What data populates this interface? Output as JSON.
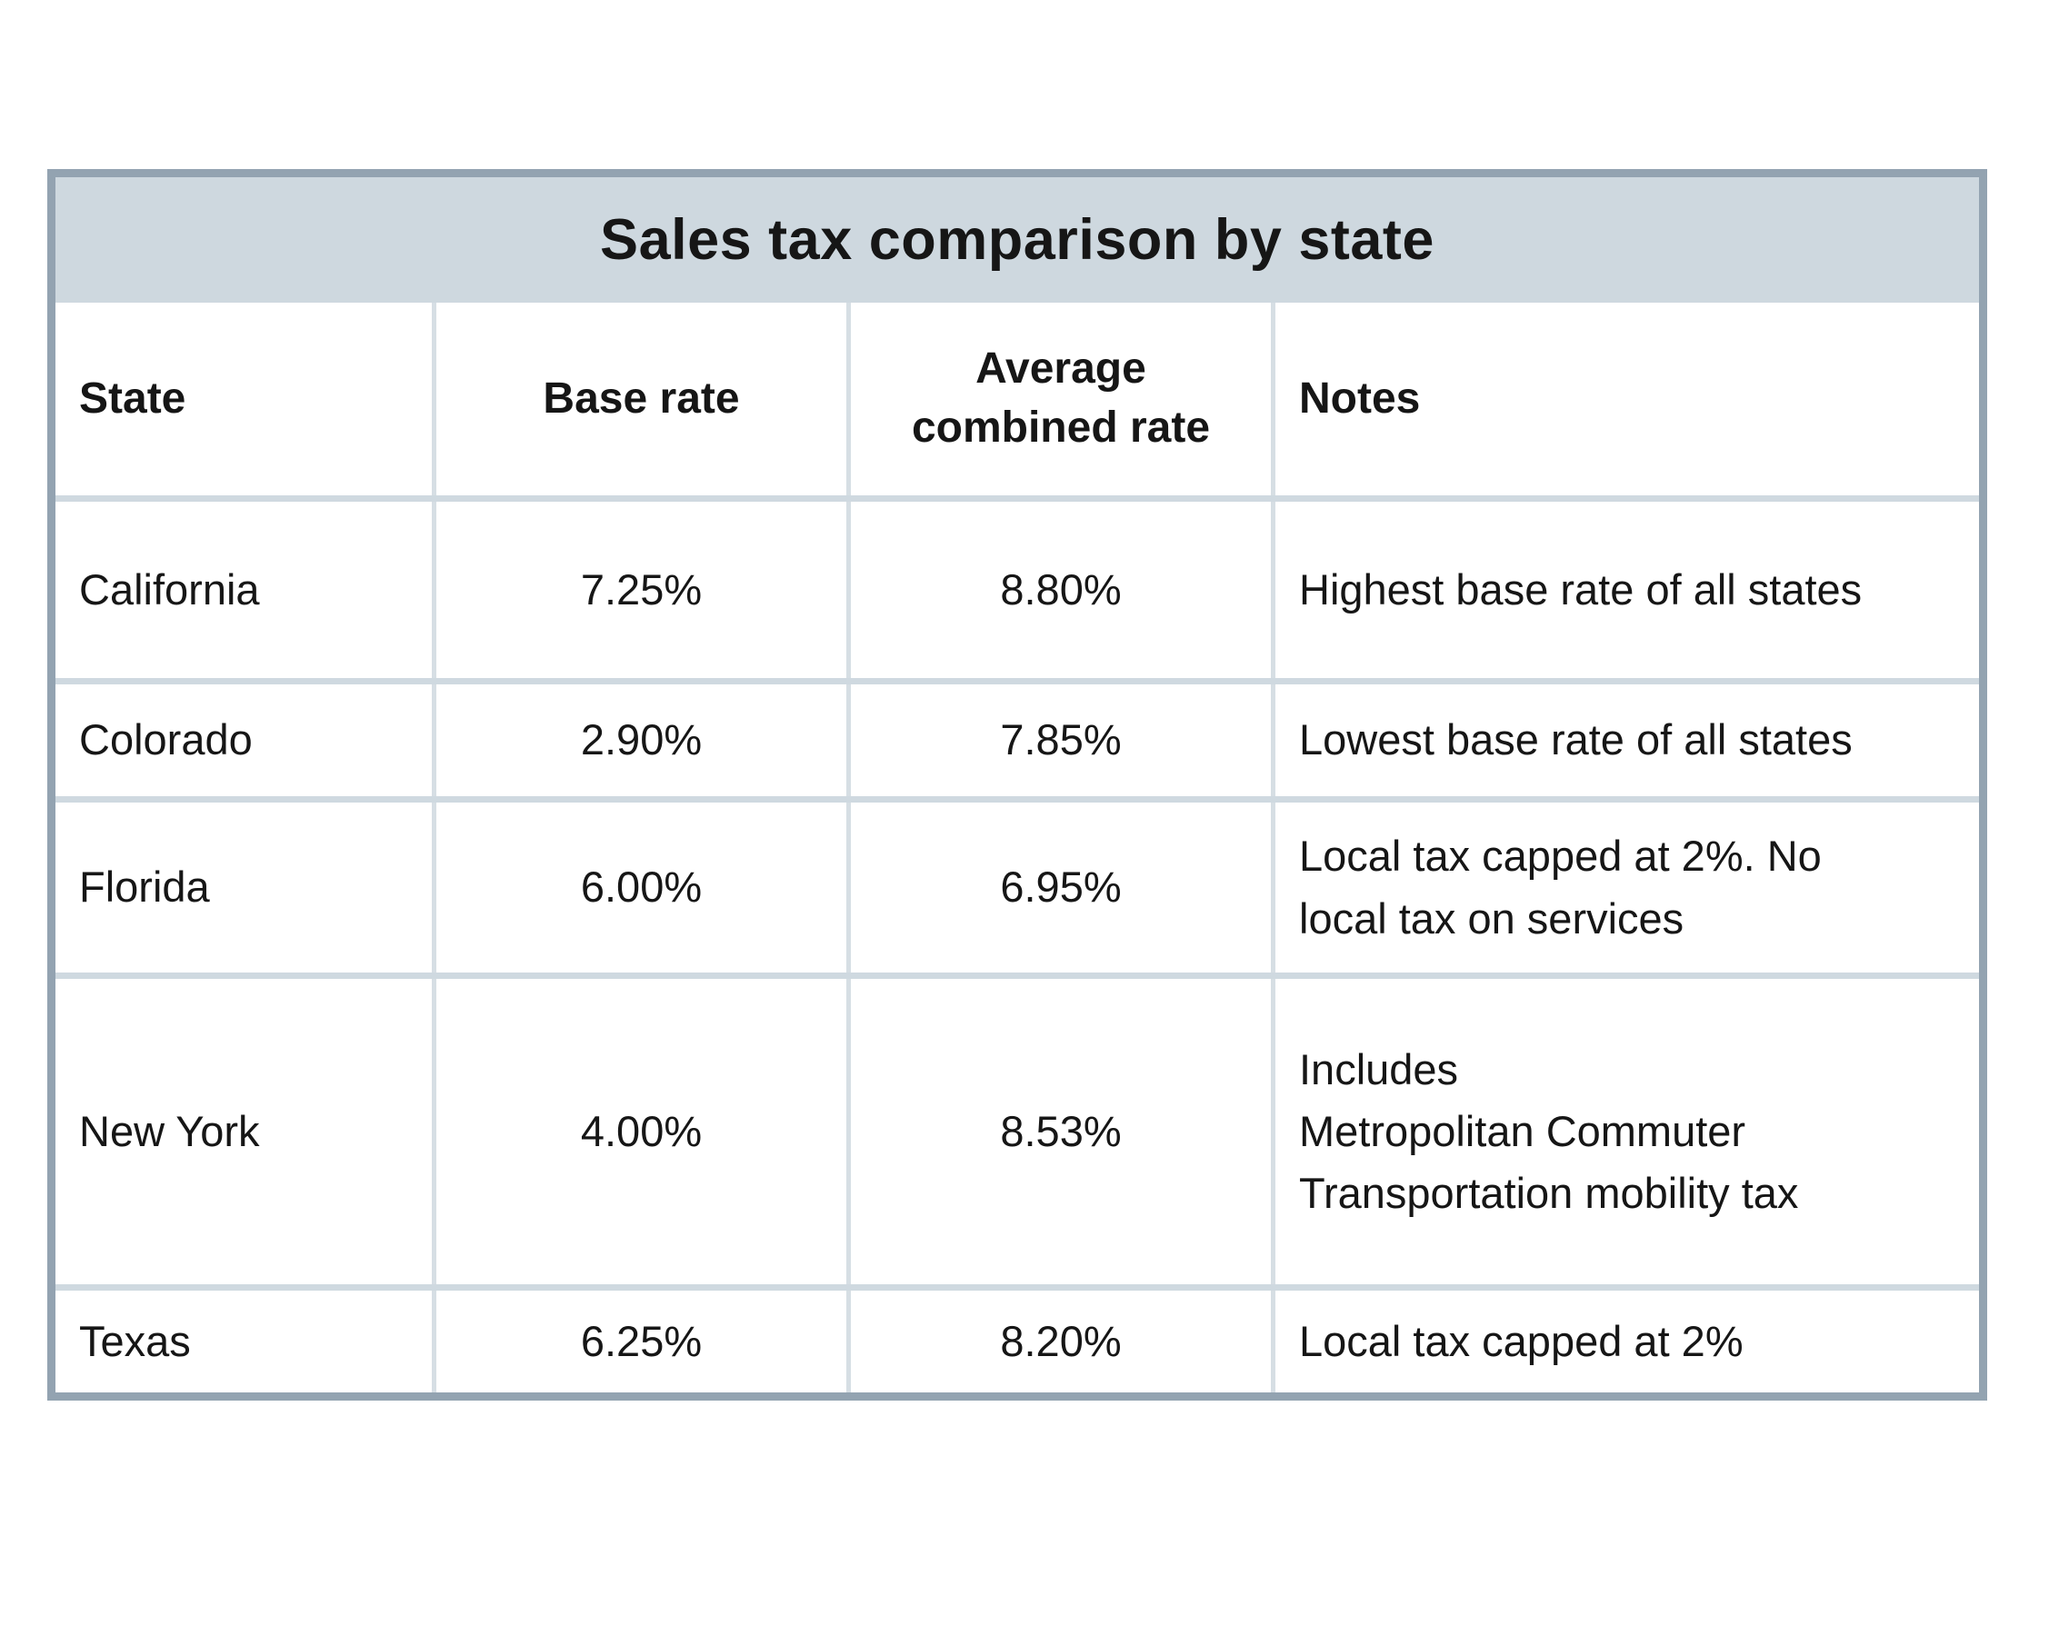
{
  "title": "Sales tax comparison by state",
  "colors": {
    "border": "#93a3b1",
    "title_bg": "#ced8df",
    "grid_h": "#cfd9e0",
    "grid_v": "#d6dee4",
    "text": "#161616",
    "page_bg": "#ffffff"
  },
  "columns": {
    "state": "State",
    "base_rate": "Base rate",
    "combined_rate": "Average combined rate",
    "notes": "Notes"
  },
  "rows": [
    {
      "state": "California",
      "base_rate": "7.25%",
      "combined_rate": "8.80%",
      "notes": "Highest base rate of all states"
    },
    {
      "state": "Colorado",
      "base_rate": "2.90%",
      "combined_rate": "7.85%",
      "notes": "Lowest base rate of all states"
    },
    {
      "state": "Florida",
      "base_rate": "6.00%",
      "combined_rate": "6.95%",
      "notes": "Local tax capped at 2%. No\nlocal tax on services"
    },
    {
      "state": "New York",
      "base_rate": "4.00%",
      "combined_rate": "8.53%",
      "notes": "Includes\nMetropolitan Commuter\nTransportation mobility tax"
    },
    {
      "state": "Texas",
      "base_rate": "6.25%",
      "combined_rate": "8.20%",
      "notes": "Local tax capped at 2%"
    }
  ],
  "chart_data": {
    "type": "table",
    "title": "Sales tax comparison by state",
    "columns": [
      "State",
      "Base rate",
      "Average combined rate",
      "Notes"
    ],
    "rows": [
      [
        "California",
        "7.25%",
        "8.80%",
        "Highest base rate of all states"
      ],
      [
        "Colorado",
        "2.90%",
        "7.85%",
        "Lowest base rate of all states"
      ],
      [
        "Florida",
        "6.00%",
        "6.95%",
        "Local tax capped at 2%. No local tax on services"
      ],
      [
        "New York",
        "4.00%",
        "8.53%",
        "Includes Metropolitan Commuter Transportation mobility tax"
      ],
      [
        "Texas",
        "6.25%",
        "8.20%",
        "Local tax capped at 2%"
      ]
    ]
  }
}
